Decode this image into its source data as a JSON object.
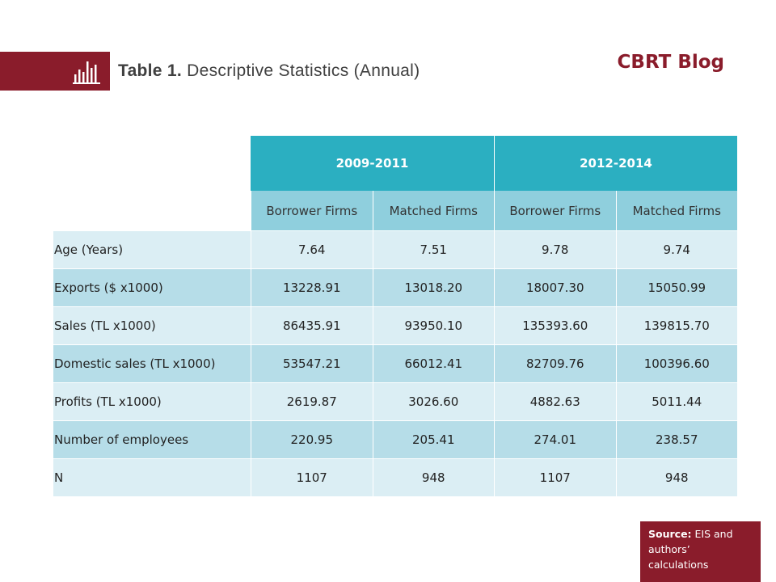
{
  "header": {
    "title_bold": "Table 1.",
    "title_rest": " Descriptive Statistics  (Annual)",
    "brand": "CBRT Blog",
    "icon": "bar-chart-icon",
    "accent_color": "#8a1c2b"
  },
  "table": {
    "periods": [
      "2009-2011",
      "2012-2014"
    ],
    "subheaders": [
      "Borrower Firms",
      "Matched Firms",
      "Borrower Firms",
      "Matched Firms"
    ],
    "rows": [
      {
        "label": "Age (Years)",
        "values": [
          "7.64",
          "7.51",
          "9.78",
          "9.74"
        ]
      },
      {
        "label": "Exports ($ x1000)",
        "values": [
          "13228.91",
          "13018.20",
          "18007.30",
          "15050.99"
        ]
      },
      {
        "label": "Sales (TL x1000)",
        "values": [
          "86435.91",
          "93950.10",
          "135393.60",
          "139815.70"
        ]
      },
      {
        "label": "Domestic sales (TL x1000)",
        "values": [
          "53547.21",
          "66012.41",
          "82709.76",
          "100396.60"
        ]
      },
      {
        "label": "Profits (TL x1000)",
        "values": [
          "2619.87",
          "3026.60",
          "4882.63",
          "5011.44"
        ]
      },
      {
        "label": "Number of employees",
        "values": [
          "220.95",
          "205.41",
          "274.01",
          "238.57"
        ]
      },
      {
        "label": "N",
        "values": [
          "1107",
          "948",
          "1107",
          "948"
        ]
      }
    ],
    "header_color": "#2bafc1",
    "subheader_color": "#8fcfdd",
    "row_light_color": "#dbeef4",
    "row_dark_color": "#b6dde8"
  },
  "source": {
    "label": "Source:",
    "text": " EIS and authors’ calculations"
  }
}
